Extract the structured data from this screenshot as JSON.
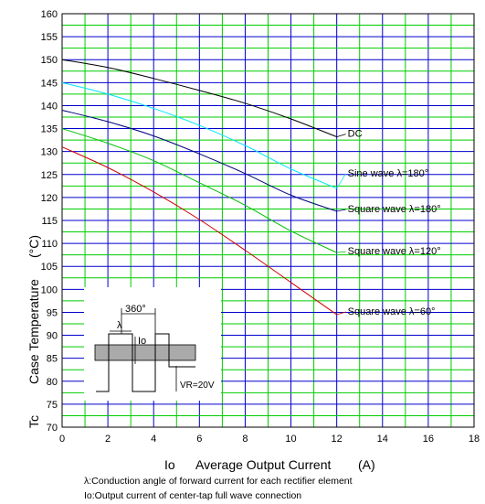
{
  "chart_data": {
    "type": "line",
    "xlabel_symbol": "Io",
    "xlabel": "Average Output Current",
    "xlabel_unit": "(A)",
    "ylabel_symbol": "Tc",
    "ylabel": "Case Temperature",
    "ylabel_unit": "(°C)",
    "xlim": [
      0,
      18
    ],
    "ylim": [
      70,
      160
    ],
    "x_ticks": [
      "0",
      "2",
      "4",
      "6",
      "8",
      "10",
      "12",
      "14",
      "16",
      "18"
    ],
    "y_ticks": [
      "70",
      "75",
      "80",
      "85",
      "90",
      "95",
      "100",
      "105",
      "110",
      "115",
      "120",
      "125",
      "130",
      "135",
      "140",
      "145",
      "150",
      "155",
      "160"
    ],
    "grid": true,
    "series": [
      {
        "name": "DC",
        "color": "#000000",
        "x": [
          0,
          2,
          4,
          6,
          8,
          10,
          12
        ],
        "y": [
          150,
          148.3,
          145.9,
          143.3,
          140.5,
          137.1,
          133.2
        ]
      },
      {
        "name": "Sine wave λ=180°",
        "color": "#00e5ff",
        "x": [
          0,
          2,
          4,
          6,
          8,
          10,
          12
        ],
        "y": [
          145,
          142.5,
          139.4,
          135.7,
          131.3,
          126.2,
          122
        ]
      },
      {
        "name": "Square wave λ=180°",
        "color": "#00007f",
        "x": [
          0,
          2,
          4,
          6,
          8,
          10,
          12
        ],
        "y": [
          139,
          136.5,
          133.4,
          129.5,
          125.2,
          120.5,
          117
        ]
      },
      {
        "name": "Square wave λ=120°",
        "color": "#00c000",
        "x": [
          0,
          2,
          4,
          6,
          8,
          10,
          12
        ],
        "y": [
          135,
          131.8,
          128,
          123.2,
          118.3,
          112.7,
          108
        ]
      },
      {
        "name": "Square wave λ=60°",
        "color": "#d00000",
        "x": [
          0,
          2,
          4,
          6,
          8,
          10,
          12
        ],
        "y": [
          131,
          126.5,
          121.2,
          115.2,
          108.5,
          101.5,
          94.5
        ]
      }
    ],
    "inset": {
      "period_label": "360°",
      "conduction_label": "λ",
      "current_label": "Io",
      "voltage_label": "VR=20V"
    },
    "footnotes": [
      "λ:Conduction angle of forward current for each rectifier element",
      "Io:Output current of center-tap full wave connection"
    ]
  }
}
